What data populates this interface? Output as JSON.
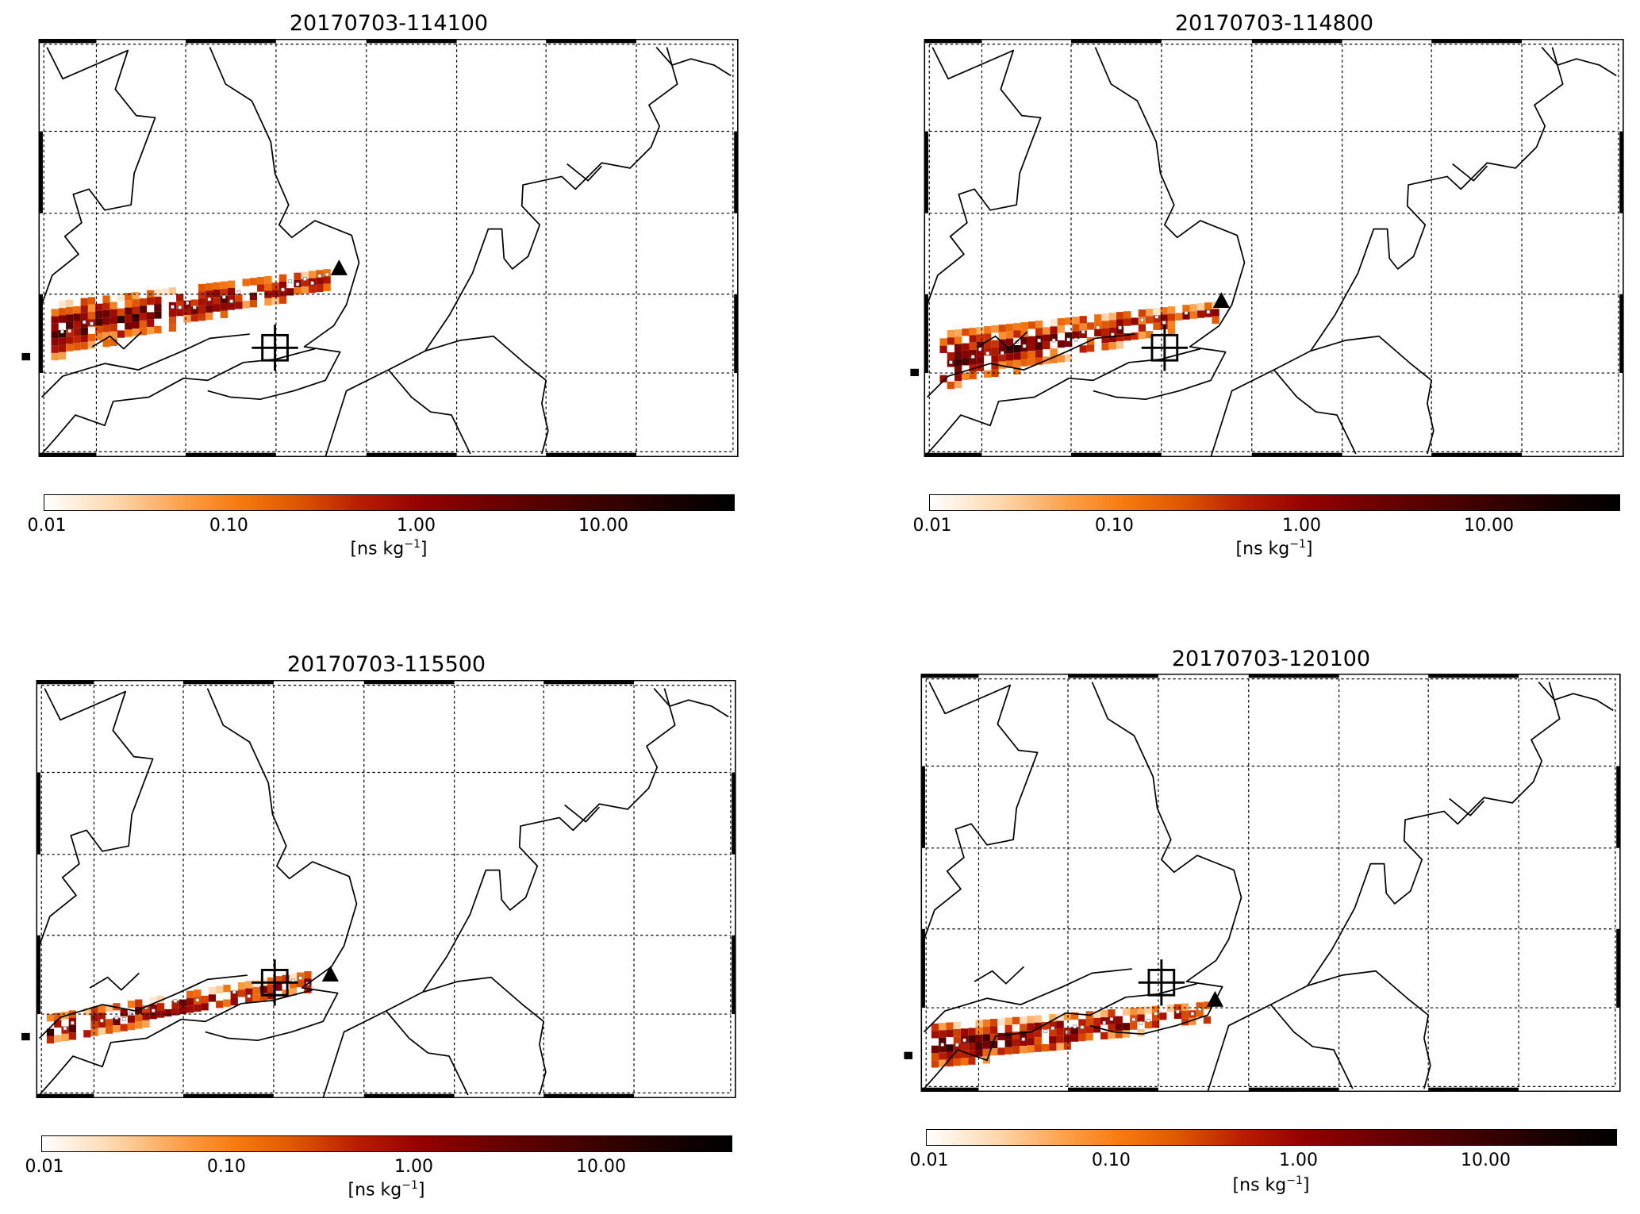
{
  "panels": [
    {
      "title": "20170703-114100"
    },
    {
      "title": "20170703-114800"
    },
    {
      "title": "20170703-115500"
    },
    {
      "title": "20170703-120100"
    }
  ],
  "colorbar": {
    "ticks": [
      "0.01",
      "0.10",
      "1.00",
      "10.00"
    ],
    "unit_prefix": "[ns kg",
    "unit_exp": "−1",
    "unit_suffix": "]",
    "colors": [
      "#ffffff",
      "#f77b10",
      "#b81c00",
      "#6a0000",
      "#000000"
    ],
    "range_log10": [
      -2,
      1.7
    ]
  },
  "markers": {
    "triangle": "triangle-icon",
    "crosshair": "crosshair-square-icon",
    "source": "square-icon"
  }
}
